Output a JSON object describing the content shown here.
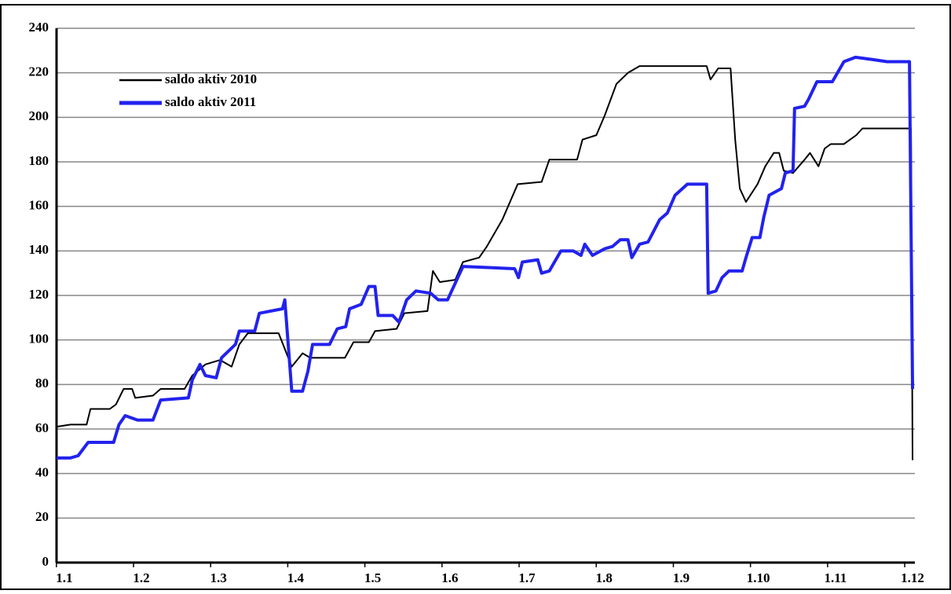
{
  "chart_data": {
    "type": "line",
    "xlim": [
      -0.1,
      11.03
    ],
    "ylim": [
      0,
      240
    ],
    "xticks": [
      {
        "value": 0,
        "label": "1.1"
      },
      {
        "value": 1,
        "label": "1.2"
      },
      {
        "value": 2,
        "label": "1.3"
      },
      {
        "value": 3,
        "label": "1.4"
      },
      {
        "value": 4,
        "label": "1.5"
      },
      {
        "value": 5,
        "label": "1.6"
      },
      {
        "value": 6,
        "label": "1.7"
      },
      {
        "value": 7,
        "label": "1.8"
      },
      {
        "value": 8,
        "label": "1.9"
      },
      {
        "value": 9,
        "label": "1.10"
      },
      {
        "value": 10,
        "label": "1.11"
      },
      {
        "value": 11,
        "label": "1.12"
      }
    ],
    "yticks": [
      0,
      20,
      40,
      60,
      80,
      100,
      120,
      140,
      160,
      180,
      200,
      220,
      240
    ],
    "grid": true,
    "legend": "upper left",
    "series": [
      {
        "name": "saldo aktiv 2010",
        "color": "#000000",
        "x": [
          -0.1,
          0.08,
          0.29,
          0.34,
          0.59,
          0.67,
          0.77,
          0.88,
          0.92,
          1.15,
          1.25,
          1.56,
          1.66,
          1.83,
          2.02,
          2.17,
          2.27,
          2.38,
          2.78,
          2.95,
          3.09,
          3.19,
          3.64,
          3.75,
          3.95,
          4.03,
          4.31,
          4.41,
          4.71,
          4.78,
          4.87,
          5.07,
          5.17,
          5.38,
          5.48,
          5.68,
          5.88,
          6.19,
          6.29,
          6.65,
          6.72,
          6.9,
          7.01,
          7.16,
          7.31,
          7.46,
          8.33,
          8.38,
          8.48,
          8.64,
          8.7,
          8.76,
          8.84,
          8.99,
          9.09,
          9.2,
          9.27,
          9.33,
          9.45,
          9.6,
          9.67,
          9.78,
          9.86,
          9.94,
          10.11,
          10.27,
          10.35,
          10.98,
          11.0
        ],
        "values": [
          61,
          62,
          62,
          69,
          69,
          71,
          78,
          78,
          74,
          75,
          78,
          78,
          84,
          89,
          91,
          88,
          98,
          103,
          103,
          88,
          94,
          92,
          92,
          99,
          99,
          104,
          105,
          112,
          113,
          131,
          126,
          127,
          135,
          137,
          142,
          154,
          170,
          171,
          181,
          181,
          190,
          192,
          201,
          215,
          220,
          223,
          223,
          217,
          222,
          222,
          190,
          168,
          162,
          170,
          178,
          184,
          184,
          176,
          175,
          181,
          184,
          178,
          186,
          188,
          188,
          192,
          195,
          195,
          46
        ]
      },
      {
        "name": "saldo aktiv 2011",
        "color": "#2222ee",
        "x": [
          -0.1,
          0.08,
          0.18,
          0.31,
          0.64,
          0.71,
          0.79,
          0.95,
          1.15,
          1.25,
          1.61,
          1.66,
          1.76,
          1.83,
          1.97,
          2.04,
          2.22,
          2.27,
          2.47,
          2.53,
          2.83,
          2.86,
          2.95,
          3.09,
          3.16,
          3.22,
          3.44,
          3.54,
          3.65,
          3.7,
          3.85,
          3.95,
          4.03,
          4.07,
          4.26,
          4.34,
          4.44,
          4.56,
          4.75,
          4.85,
          4.97,
          5.05,
          5.17,
          5.84,
          5.89,
          5.94,
          6.14,
          6.19,
          6.29,
          6.44,
          6.6,
          6.7,
          6.75,
          6.85,
          7.01,
          7.11,
          7.21,
          7.31,
          7.36,
          7.46,
          7.57,
          7.72,
          7.82,
          7.92,
          8.08,
          8.33,
          8.35,
          8.45,
          8.53,
          8.62,
          8.79,
          8.84,
          8.92,
          9.02,
          9.07,
          9.14,
          9.3,
          9.35,
          9.45,
          9.47,
          9.6,
          9.65,
          9.76,
          9.96,
          10.06,
          10.11,
          10.26,
          10.47,
          10.67,
          10.96,
          11.0
        ],
        "values": [
          47,
          47,
          48,
          54,
          54,
          62,
          66,
          64,
          64,
          73,
          74,
          82,
          89,
          84,
          83,
          92,
          98,
          104,
          104,
          112,
          114,
          118,
          77,
          77,
          86,
          98,
          98,
          105,
          106,
          114,
          116,
          124,
          124,
          111,
          111,
          108,
          118,
          122,
          121,
          118,
          118,
          124,
          133,
          132,
          128,
          135,
          136,
          130,
          131,
          140,
          140,
          138,
          143,
          138,
          141,
          142,
          145,
          145,
          137,
          143,
          144,
          154,
          157,
          165,
          170,
          170,
          121,
          122,
          128,
          131,
          131,
          137,
          146,
          146,
          155,
          165,
          168,
          175,
          176,
          204,
          205,
          208,
          216,
          216,
          222,
          225,
          227,
          226,
          225,
          225,
          78
        ]
      }
    ]
  }
}
